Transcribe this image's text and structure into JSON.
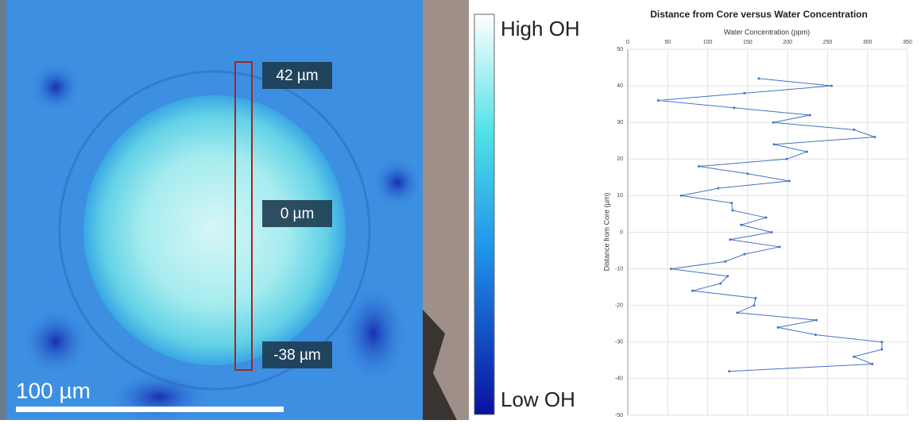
{
  "image": {
    "labels": [
      "42 µm",
      "0 µm",
      "-38 µm"
    ],
    "scale_bar": "100 µm"
  },
  "colorbar": {
    "top": "High OH",
    "bottom": "Low OH"
  },
  "chart_data": {
    "type": "line",
    "title": "Distance from Core versus Water Concentration",
    "x_label": "Water Concentration (ppm)",
    "y_label": "Distance from Core (µm)",
    "x": [
      164,
      255,
      146,
      38,
      133,
      228,
      182,
      283,
      309,
      183,
      224,
      199,
      89,
      150,
      202,
      113,
      67,
      130,
      131,
      173,
      142,
      180,
      128,
      190,
      146,
      122,
      54,
      125,
      116,
      81,
      160,
      158,
      137,
      236,
      188,
      235,
      318,
      318,
      283,
      306,
      127
    ],
    "values": [
      42,
      40,
      38,
      36,
      34,
      32,
      30,
      28,
      26,
      24,
      22,
      20,
      18,
      16,
      14,
      12,
      10,
      8,
      6,
      4,
      2,
      0,
      -2,
      -4,
      -6,
      -8,
      -10,
      -12,
      -14,
      -16,
      -18,
      -20,
      -22,
      -24,
      -26,
      -28,
      -30,
      -32,
      -34,
      -36,
      -38
    ],
    "color": "#4472c4",
    "xlim": [
      0,
      350
    ],
    "xticks": [
      0,
      50,
      100,
      150,
      200,
      250,
      300,
      350
    ],
    "ylim": [
      -50,
      50
    ],
    "yticks": [
      -50,
      -40,
      -30,
      -20,
      -10,
      0,
      10,
      20,
      30,
      40,
      50
    ],
    "grid": true
  }
}
